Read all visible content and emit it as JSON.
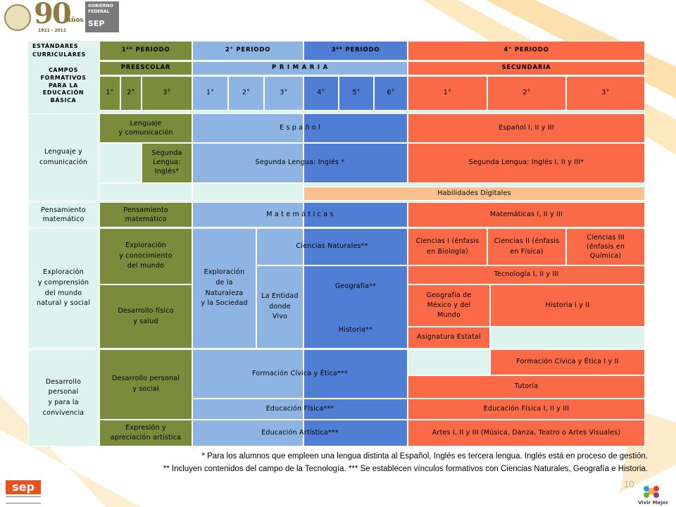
{
  "header": {
    "anniversary_number": "90",
    "anniversary_word": "años",
    "anniversary_years": "1921 - 2011",
    "gov_line1": "GOBIERNO",
    "gov_line2": "FEDERAL",
    "sep": "SEP"
  },
  "table": {
    "row_estandares": "ESTÁNDARES CURRICULARES",
    "periodo_1": "1ᴱᴿ PERIODO",
    "periodo_2": "2° PERIODO",
    "periodo_3": "3ᴱᴿ PERIODO",
    "periodo_4": "4° PERIODO",
    "row_campos": "CAMPOS\nFORMATIVOS\nPARA LA\nEDUCACIÓN\nBÁSICA",
    "preescolar": "PREESCOLAR",
    "primaria": "P R I M A R I A",
    "secundaria": "SECUNDARIA",
    "grades": [
      "1°",
      "2°",
      "3°",
      "1°",
      "2°",
      "3°",
      "4°",
      "5°",
      "6°",
      "1°",
      "2°",
      "3°"
    ],
    "campo_lenguaje": "Lenguaje y\ncomunicación",
    "pre_lenguaje": "Lenguaje\ny comunicación",
    "espanol": "E s p a ñ o l",
    "espanol_sec": "Español I, II y III",
    "pre_segunda": "Segunda\nLengua:\nInglés*",
    "segunda_prim": "Segunda Lengua:  Inglés *",
    "segunda_sec": "Segunda Lengua: Inglés I, II y III*",
    "habilidades": "Habilidades Digitales",
    "campo_pensamiento": "Pensamiento\nmatemático",
    "pre_pensamiento": "Pensamiento\nmatemático",
    "matematicas": "M a t e m á t i c a s",
    "matematicas_sec": "Matemáticas  I, II y III",
    "campo_exploracion": "Exploración\ny comprensión\ndel mundo\nnatural y social",
    "pre_exploracion": "Exploración\ny conocimiento\ndel mundo",
    "prim_exploracion": "Exploración\nde la\nNaturaleza\ny la Sociedad",
    "ciencias_naturales": "Ciencias  Naturales**",
    "ciencias_1": "Ciencias I (énfasis\nen Biología)",
    "ciencias_2": "Ciencias II (énfasis\nen Física)",
    "ciencias_3": "Ciencias III\n(énfasis en\nQuímica)",
    "la_entidad": "La Entidad\ndonde\nVivo",
    "geografia": "Geografía**",
    "historia": "Historia**",
    "tecnologia": "Tecnología  I, II y III",
    "geografia_mexico": "Geografía de\nMéxico y del\nMundo",
    "historia_sec": "Historia I y II",
    "pre_desarrollo_fisico": "Desarrollo físico\ny salud",
    "asignatura_estatal": "Asignatura Estatal",
    "campo_desarrollo": "Desarrollo\npersonal\ny para la\nconvivencia",
    "pre_desarrollo_personal": "Desarrollo personal\ny social",
    "formacion_civica": "Formación Cívica y Ética***",
    "formacion_sec": "Formación Cívica  y  Ética I y II",
    "tutoria": "Tutoría",
    "educacion_fisica": "Educación  Física***",
    "educacion_fisica_sec": "Educación Física I, II y III",
    "pre_expresion": "Expresión y\napreciación artística",
    "educacion_artistica": "Educación  Artística***",
    "artes_sec": "Artes I, II y III (Música, Danza, Teatro o Artes Visuales)"
  },
  "notes": {
    "line1": "* Para los alumnos que empleen una lengua distinta al Español, Inglés es tercera lengua. Inglés está en proceso de gestión.",
    "line2": "** Incluyen contenidos del campo de la Tecnología. *** Se establecen vínculos formativos con Ciencias Naturales, Geografía e Historia."
  },
  "footer": {
    "page_number": "10",
    "sep_logo": "sep",
    "vivir_mejor": "Vivir Mejor"
  },
  "colors": {
    "light": "#dff3ee",
    "olive": "#788c3c",
    "light_blue": "#8eb4e3",
    "dark_blue": "#4f7ed4",
    "red_orange": "#fb6a47",
    "peach": "#f9c090",
    "accent_yellow": "#f6b23a"
  }
}
